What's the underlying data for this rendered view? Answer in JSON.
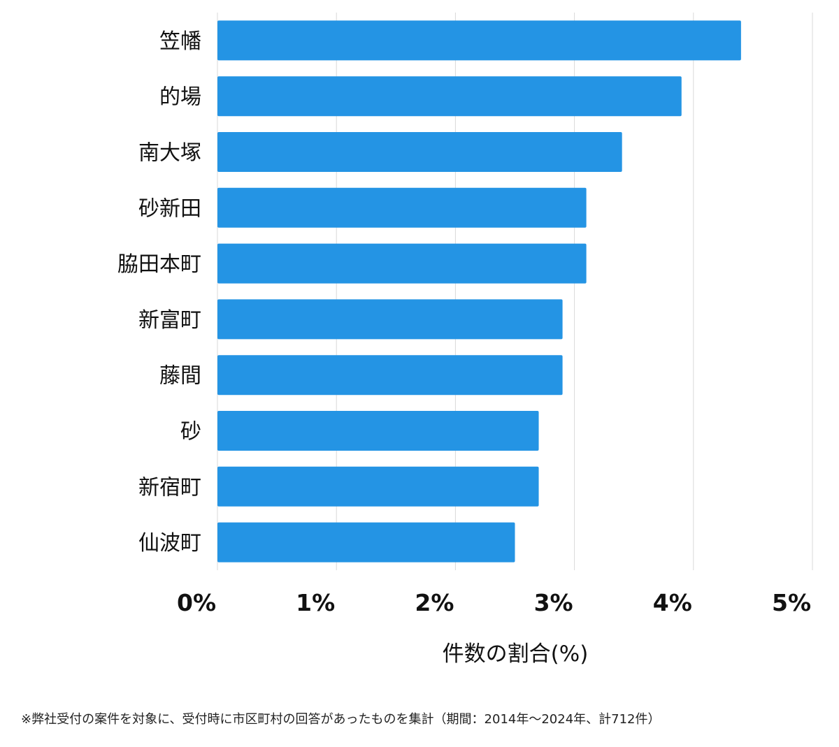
{
  "chart_data": {
    "type": "bar",
    "orientation": "horizontal",
    "categories": [
      "笠幡",
      "的場",
      "南大塚",
      "砂新田",
      "脇田本町",
      "新富町",
      "藤間",
      "砂",
      "新宿町",
      "仙波町"
    ],
    "values": [
      4.4,
      3.9,
      3.4,
      3.1,
      3.1,
      2.9,
      2.9,
      2.7,
      2.7,
      2.5
    ],
    "xlabel": "件数の割合(%)",
    "xlim": [
      0,
      5
    ],
    "ticks": [
      0,
      1,
      2,
      3,
      4,
      5
    ],
    "tick_labels": [
      "0%",
      "1%",
      "2%",
      "3%",
      "4%",
      "5%"
    ],
    "grid": true,
    "bar_color": "#2494e4",
    "grid_color": "#d9d9d9"
  },
  "footnote": "※弊社受付の案件を対象に、受付時に市区町村の回答があったものを集計（期間：2014年～2024年、計712件）"
}
